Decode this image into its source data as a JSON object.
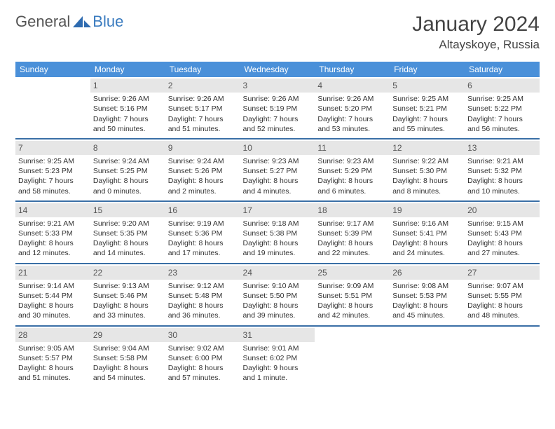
{
  "brand": {
    "text1": "General",
    "text2": "Blue"
  },
  "title": "January 2024",
  "location": "Altayskoye, Russia",
  "colors": {
    "header_bg": "#4a90d9",
    "row_border": "#3a6fa6",
    "daynum_bg": "#e6e6e6"
  },
  "weekdays": [
    "Sunday",
    "Monday",
    "Tuesday",
    "Wednesday",
    "Thursday",
    "Friday",
    "Saturday"
  ],
  "weeks": [
    [
      {
        "n": "",
        "l1": "",
        "l2": "",
        "l3": "",
        "l4": "",
        "empty": true
      },
      {
        "n": "1",
        "l1": "Sunrise: 9:26 AM",
        "l2": "Sunset: 5:16 PM",
        "l3": "Daylight: 7 hours",
        "l4": "and 50 minutes."
      },
      {
        "n": "2",
        "l1": "Sunrise: 9:26 AM",
        "l2": "Sunset: 5:17 PM",
        "l3": "Daylight: 7 hours",
        "l4": "and 51 minutes."
      },
      {
        "n": "3",
        "l1": "Sunrise: 9:26 AM",
        "l2": "Sunset: 5:19 PM",
        "l3": "Daylight: 7 hours",
        "l4": "and 52 minutes."
      },
      {
        "n": "4",
        "l1": "Sunrise: 9:26 AM",
        "l2": "Sunset: 5:20 PM",
        "l3": "Daylight: 7 hours",
        "l4": "and 53 minutes."
      },
      {
        "n": "5",
        "l1": "Sunrise: 9:25 AM",
        "l2": "Sunset: 5:21 PM",
        "l3": "Daylight: 7 hours",
        "l4": "and 55 minutes."
      },
      {
        "n": "6",
        "l1": "Sunrise: 9:25 AM",
        "l2": "Sunset: 5:22 PM",
        "l3": "Daylight: 7 hours",
        "l4": "and 56 minutes."
      }
    ],
    [
      {
        "n": "7",
        "l1": "Sunrise: 9:25 AM",
        "l2": "Sunset: 5:23 PM",
        "l3": "Daylight: 7 hours",
        "l4": "and 58 minutes."
      },
      {
        "n": "8",
        "l1": "Sunrise: 9:24 AM",
        "l2": "Sunset: 5:25 PM",
        "l3": "Daylight: 8 hours",
        "l4": "and 0 minutes."
      },
      {
        "n": "9",
        "l1": "Sunrise: 9:24 AM",
        "l2": "Sunset: 5:26 PM",
        "l3": "Daylight: 8 hours",
        "l4": "and 2 minutes."
      },
      {
        "n": "10",
        "l1": "Sunrise: 9:23 AM",
        "l2": "Sunset: 5:27 PM",
        "l3": "Daylight: 8 hours",
        "l4": "and 4 minutes."
      },
      {
        "n": "11",
        "l1": "Sunrise: 9:23 AM",
        "l2": "Sunset: 5:29 PM",
        "l3": "Daylight: 8 hours",
        "l4": "and 6 minutes."
      },
      {
        "n": "12",
        "l1": "Sunrise: 9:22 AM",
        "l2": "Sunset: 5:30 PM",
        "l3": "Daylight: 8 hours",
        "l4": "and 8 minutes."
      },
      {
        "n": "13",
        "l1": "Sunrise: 9:21 AM",
        "l2": "Sunset: 5:32 PM",
        "l3": "Daylight: 8 hours",
        "l4": "and 10 minutes."
      }
    ],
    [
      {
        "n": "14",
        "l1": "Sunrise: 9:21 AM",
        "l2": "Sunset: 5:33 PM",
        "l3": "Daylight: 8 hours",
        "l4": "and 12 minutes."
      },
      {
        "n": "15",
        "l1": "Sunrise: 9:20 AM",
        "l2": "Sunset: 5:35 PM",
        "l3": "Daylight: 8 hours",
        "l4": "and 14 minutes."
      },
      {
        "n": "16",
        "l1": "Sunrise: 9:19 AM",
        "l2": "Sunset: 5:36 PM",
        "l3": "Daylight: 8 hours",
        "l4": "and 17 minutes."
      },
      {
        "n": "17",
        "l1": "Sunrise: 9:18 AM",
        "l2": "Sunset: 5:38 PM",
        "l3": "Daylight: 8 hours",
        "l4": "and 19 minutes."
      },
      {
        "n": "18",
        "l1": "Sunrise: 9:17 AM",
        "l2": "Sunset: 5:39 PM",
        "l3": "Daylight: 8 hours",
        "l4": "and 22 minutes."
      },
      {
        "n": "19",
        "l1": "Sunrise: 9:16 AM",
        "l2": "Sunset: 5:41 PM",
        "l3": "Daylight: 8 hours",
        "l4": "and 24 minutes."
      },
      {
        "n": "20",
        "l1": "Sunrise: 9:15 AM",
        "l2": "Sunset: 5:43 PM",
        "l3": "Daylight: 8 hours",
        "l4": "and 27 minutes."
      }
    ],
    [
      {
        "n": "21",
        "l1": "Sunrise: 9:14 AM",
        "l2": "Sunset: 5:44 PM",
        "l3": "Daylight: 8 hours",
        "l4": "and 30 minutes."
      },
      {
        "n": "22",
        "l1": "Sunrise: 9:13 AM",
        "l2": "Sunset: 5:46 PM",
        "l3": "Daylight: 8 hours",
        "l4": "and 33 minutes."
      },
      {
        "n": "23",
        "l1": "Sunrise: 9:12 AM",
        "l2": "Sunset: 5:48 PM",
        "l3": "Daylight: 8 hours",
        "l4": "and 36 minutes."
      },
      {
        "n": "24",
        "l1": "Sunrise: 9:10 AM",
        "l2": "Sunset: 5:50 PM",
        "l3": "Daylight: 8 hours",
        "l4": "and 39 minutes."
      },
      {
        "n": "25",
        "l1": "Sunrise: 9:09 AM",
        "l2": "Sunset: 5:51 PM",
        "l3": "Daylight: 8 hours",
        "l4": "and 42 minutes."
      },
      {
        "n": "26",
        "l1": "Sunrise: 9:08 AM",
        "l2": "Sunset: 5:53 PM",
        "l3": "Daylight: 8 hours",
        "l4": "and 45 minutes."
      },
      {
        "n": "27",
        "l1": "Sunrise: 9:07 AM",
        "l2": "Sunset: 5:55 PM",
        "l3": "Daylight: 8 hours",
        "l4": "and 48 minutes."
      }
    ],
    [
      {
        "n": "28",
        "l1": "Sunrise: 9:05 AM",
        "l2": "Sunset: 5:57 PM",
        "l3": "Daylight: 8 hours",
        "l4": "and 51 minutes."
      },
      {
        "n": "29",
        "l1": "Sunrise: 9:04 AM",
        "l2": "Sunset: 5:58 PM",
        "l3": "Daylight: 8 hours",
        "l4": "and 54 minutes."
      },
      {
        "n": "30",
        "l1": "Sunrise: 9:02 AM",
        "l2": "Sunset: 6:00 PM",
        "l3": "Daylight: 8 hours",
        "l4": "and 57 minutes."
      },
      {
        "n": "31",
        "l1": "Sunrise: 9:01 AM",
        "l2": "Sunset: 6:02 PM",
        "l3": "Daylight: 9 hours",
        "l4": "and 1 minute."
      },
      {
        "n": "",
        "l1": "",
        "l2": "",
        "l3": "",
        "l4": "",
        "empty": true
      },
      {
        "n": "",
        "l1": "",
        "l2": "",
        "l3": "",
        "l4": "",
        "empty": true
      },
      {
        "n": "",
        "l1": "",
        "l2": "",
        "l3": "",
        "l4": "",
        "empty": true
      }
    ]
  ]
}
